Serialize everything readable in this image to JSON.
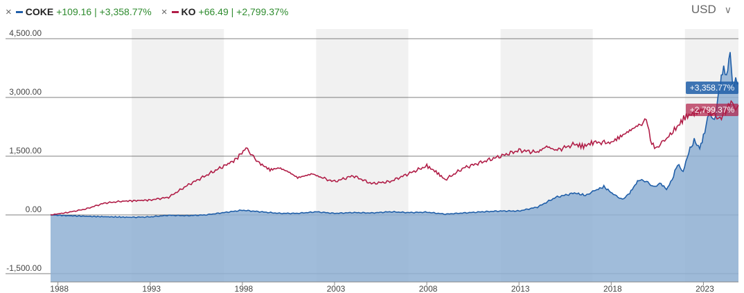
{
  "legend": [
    {
      "remove_icon": "×",
      "ticker": "COKE",
      "change": "+109.16 | +3,358.77%",
      "color": "#1f5ea8"
    },
    {
      "remove_icon": "×",
      "ticker": "KO",
      "change": "+66.49 | +2,799.37%",
      "color": "#b01c46"
    }
  ],
  "currency": {
    "label": "USD",
    "chevron": "∨"
  },
  "chart_data": {
    "type": "line",
    "y_axis": {
      "ticks": [
        4500,
        3000,
        1500,
        0,
        -1500
      ],
      "tick_labels": [
        "4,500.00",
        "3,000.00",
        "1,500.00",
        "0.00",
        "-1,500.00"
      ],
      "ylim": [
        -1500,
        4500
      ]
    },
    "x_axis": {
      "tick_labels": [
        "1988",
        "1993",
        "1998",
        "2003",
        "2008",
        "2013",
        "2018",
        "2023"
      ],
      "xlim": [
        1987.6,
        2024.9
      ]
    },
    "shaded_bands": [
      [
        1992,
        1997
      ],
      [
        2002,
        2007
      ],
      [
        2012,
        2017
      ],
      [
        2022,
        2024.9
      ]
    ],
    "series": [
      {
        "name": "COKE",
        "color": "#1f5ea8",
        "fill": "#8fb0d4",
        "end_label": "+3,358.77%",
        "points": [
          [
            1987.6,
            0
          ],
          [
            1988.5,
            -20
          ],
          [
            1990,
            -40
          ],
          [
            1992,
            -60
          ],
          [
            1993,
            -50
          ],
          [
            1994,
            -10
          ],
          [
            1995,
            -20
          ],
          [
            1996,
            0
          ],
          [
            1997,
            60
          ],
          [
            1998,
            120
          ],
          [
            1999,
            80
          ],
          [
            2000,
            40
          ],
          [
            2001,
            40
          ],
          [
            2002,
            80
          ],
          [
            2003,
            40
          ],
          [
            2004,
            60
          ],
          [
            2005,
            50
          ],
          [
            2006,
            80
          ],
          [
            2007,
            60
          ],
          [
            2008,
            70
          ],
          [
            2009,
            20
          ],
          [
            2010,
            50
          ],
          [
            2011,
            80
          ],
          [
            2012,
            100
          ],
          [
            2013,
            100
          ],
          [
            2014,
            200
          ],
          [
            2015,
            450
          ],
          [
            2016,
            560
          ],
          [
            2016.6,
            500
          ],
          [
            2017,
            600
          ],
          [
            2017.6,
            720
          ],
          [
            2018.2,
            500
          ],
          [
            2018.6,
            400
          ],
          [
            2019,
            560
          ],
          [
            2019.5,
            900
          ],
          [
            2019.9,
            850
          ],
          [
            2020.3,
            700
          ],
          [
            2020.7,
            800
          ],
          [
            2021,
            650
          ],
          [
            2021.3,
            900
          ],
          [
            2021.6,
            1300
          ],
          [
            2021.9,
            1100
          ],
          [
            2022.2,
            1600
          ],
          [
            2022.5,
            1900
          ],
          [
            2022.8,
            1700
          ],
          [
            2023,
            2000
          ],
          [
            2023.3,
            2600
          ],
          [
            2023.6,
            2400
          ],
          [
            2023.9,
            3300
          ],
          [
            2024.1,
            3800
          ],
          [
            2024.25,
            3500
          ],
          [
            2024.45,
            4200
          ],
          [
            2024.6,
            3200
          ],
          [
            2024.75,
            3450
          ],
          [
            2024.9,
            3358.77
          ]
        ]
      },
      {
        "name": "KO",
        "color": "#b01c46",
        "end_label": "+2,799.37%",
        "points": [
          [
            1987.6,
            0
          ],
          [
            1988.5,
            60
          ],
          [
            1989.5,
            150
          ],
          [
            1990.5,
            300
          ],
          [
            1991.5,
            350
          ],
          [
            1993,
            380
          ],
          [
            1994,
            450
          ],
          [
            1995,
            750
          ],
          [
            1996,
            1000
          ],
          [
            1997,
            1250
          ],
          [
            1997.6,
            1400
          ],
          [
            1998.2,
            1700
          ],
          [
            1998.6,
            1500
          ],
          [
            1999,
            1300
          ],
          [
            1999.5,
            1150
          ],
          [
            2000,
            1200
          ],
          [
            2000.5,
            1100
          ],
          [
            2001,
            950
          ],
          [
            2001.8,
            1050
          ],
          [
            2002.3,
            950
          ],
          [
            2003,
            850
          ],
          [
            2004,
            1000
          ],
          [
            2005,
            800
          ],
          [
            2006,
            850
          ],
          [
            2007,
            1050
          ],
          [
            2008,
            1250
          ],
          [
            2008.5,
            1100
          ],
          [
            2009,
            900
          ],
          [
            2010,
            1200
          ],
          [
            2011,
            1350
          ],
          [
            2012,
            1500
          ],
          [
            2013,
            1650
          ],
          [
            2014,
            1600
          ],
          [
            2014.5,
            1750
          ],
          [
            2015,
            1650
          ],
          [
            2016,
            1800
          ],
          [
            2016.5,
            1750
          ],
          [
            2017,
            1850
          ],
          [
            2018,
            1850
          ],
          [
            2018.5,
            2000
          ],
          [
            2019,
            2150
          ],
          [
            2019.5,
            2300
          ],
          [
            2019.9,
            2450
          ],
          [
            2020.2,
            1800
          ],
          [
            2020.5,
            1700
          ],
          [
            2020.9,
            1900
          ],
          [
            2021.5,
            2200
          ],
          [
            2022,
            2500
          ],
          [
            2022.5,
            2600
          ],
          [
            2023,
            2700
          ],
          [
            2023.5,
            2550
          ],
          [
            2023.9,
            2450
          ],
          [
            2024.2,
            2650
          ],
          [
            2024.5,
            2900
          ],
          [
            2024.75,
            2700
          ],
          [
            2024.9,
            2799.37
          ]
        ]
      }
    ]
  }
}
